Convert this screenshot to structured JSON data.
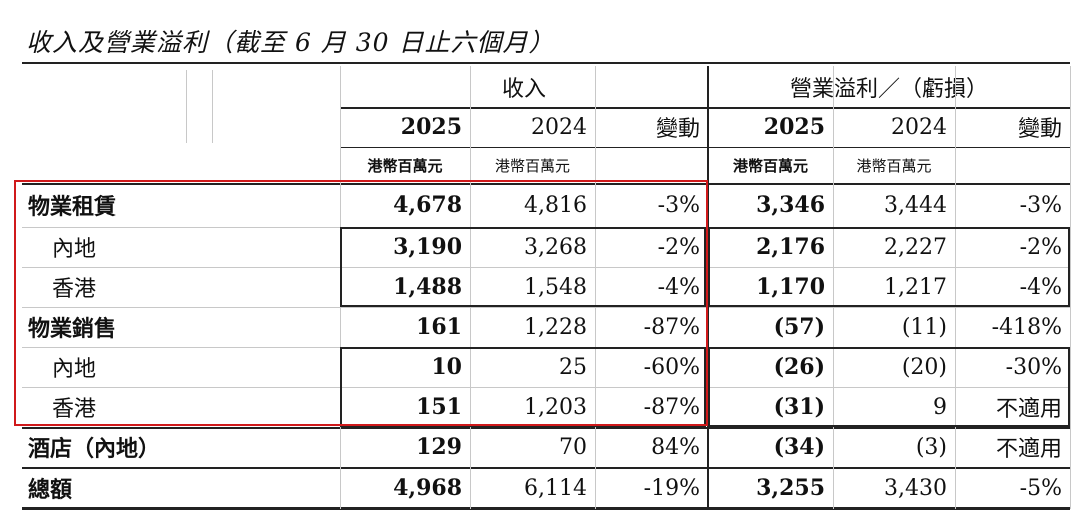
{
  "title": "收入及營業溢利（截至 6 月 30 日止六個月）",
  "header": {
    "revenue_group": "收入",
    "profit_group": "營業溢利／（虧損）",
    "years": [
      "2025",
      "2024",
      "變動",
      "2025",
      "2024",
      "變動"
    ],
    "units": [
      "港幣百萬元",
      "港幣百萬元",
      "港幣百萬元",
      "港幣百萬元"
    ]
  },
  "rows": [
    {
      "label": "物業租賃",
      "indent": false,
      "rev25": "4,678",
      "rev24": "4,816",
      "rev_chg": "-3%",
      "op25": "3,346",
      "op24": "3,444",
      "op_chg": "-3%"
    },
    {
      "label": "內地",
      "indent": true,
      "rev25": "3,190",
      "rev24": "3,268",
      "rev_chg": "-2%",
      "op25": "2,176",
      "op24": "2,227",
      "op_chg": "-2%"
    },
    {
      "label": "香港",
      "indent": true,
      "rev25": "1,488",
      "rev24": "1,548",
      "rev_chg": "-4%",
      "op25": "1,170",
      "op24": "1,217",
      "op_chg": "-4%"
    },
    {
      "label": "物業銷售",
      "indent": false,
      "rev25": "161",
      "rev24": "1,228",
      "rev_chg": "-87%",
      "op25": "(57)",
      "op24": "(11)",
      "op_chg": "-418%"
    },
    {
      "label": "內地",
      "indent": true,
      "rev25": "10",
      "rev24": "25",
      "rev_chg": "-60%",
      "op25": "(26)",
      "op24": "(20)",
      "op_chg": "-30%"
    },
    {
      "label": "香港",
      "indent": true,
      "rev25": "151",
      "rev24": "1,203",
      "rev_chg": "-87%",
      "op25": "(31)",
      "op24": "9",
      "op_chg": "不適用"
    },
    {
      "label": "酒店（內地）",
      "indent": false,
      "rev25": "129",
      "rev24": "70",
      "rev_chg": "84%",
      "op25": "(34)",
      "op24": "(3)",
      "op_chg": "不適用"
    },
    {
      "label": "總額",
      "indent": false,
      "rev25": "4,968",
      "rev24": "6,114",
      "rev_chg": "-19%",
      "op25": "3,255",
      "op24": "3,430",
      "op_chg": "-5%"
    }
  ]
}
